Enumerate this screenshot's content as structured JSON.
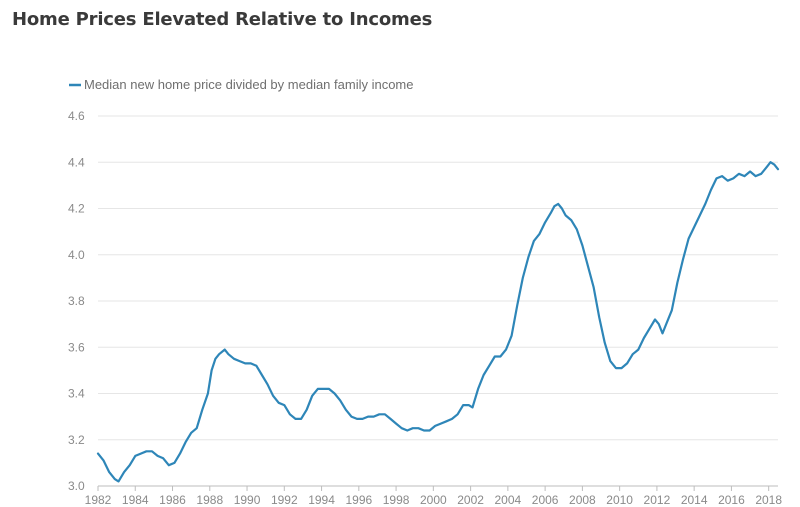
{
  "chart_data": {
    "type": "line",
    "title": "Home Prices Elevated Relative to Incomes",
    "xlabel": "",
    "ylabel": "",
    "xlim": [
      1982,
      2018.5
    ],
    "ylim": [
      3.0,
      4.6
    ],
    "grid": true,
    "legend_position": "top-left",
    "x_ticks": [
      1982,
      1984,
      1986,
      1988,
      1990,
      1992,
      1994,
      1996,
      1998,
      2000,
      2002,
      2004,
      2006,
      2008,
      2010,
      2012,
      2014,
      2016,
      2018
    ],
    "y_ticks": [
      "3.0",
      "3.2",
      "3.4",
      "3.6",
      "3.8",
      "4.0",
      "4.2",
      "4.4",
      "4.6"
    ],
    "colors": {
      "series": "#2e86b8",
      "grid": "#e6e6e6",
      "axis": "#bdbdbd"
    },
    "series": [
      {
        "name": "Median new home price divided by median family income",
        "points": [
          [
            1982.0,
            3.14
          ],
          [
            1982.3,
            3.11
          ],
          [
            1982.6,
            3.06
          ],
          [
            1982.9,
            3.03
          ],
          [
            1983.1,
            3.02
          ],
          [
            1983.4,
            3.06
          ],
          [
            1983.7,
            3.09
          ],
          [
            1984.0,
            3.13
          ],
          [
            1984.3,
            3.14
          ],
          [
            1984.6,
            3.15
          ],
          [
            1984.9,
            3.15
          ],
          [
            1985.2,
            3.13
          ],
          [
            1985.5,
            3.12
          ],
          [
            1985.8,
            3.09
          ],
          [
            1986.1,
            3.1
          ],
          [
            1986.4,
            3.14
          ],
          [
            1986.7,
            3.19
          ],
          [
            1987.0,
            3.23
          ],
          [
            1987.3,
            3.25
          ],
          [
            1987.6,
            3.33
          ],
          [
            1987.9,
            3.4
          ],
          [
            1988.1,
            3.5
          ],
          [
            1988.3,
            3.55
          ],
          [
            1988.5,
            3.57
          ],
          [
            1988.8,
            3.59
          ],
          [
            1989.0,
            3.57
          ],
          [
            1989.3,
            3.55
          ],
          [
            1989.6,
            3.54
          ],
          [
            1989.9,
            3.53
          ],
          [
            1990.2,
            3.53
          ],
          [
            1990.5,
            3.52
          ],
          [
            1990.8,
            3.48
          ],
          [
            1991.1,
            3.44
          ],
          [
            1991.4,
            3.39
          ],
          [
            1991.7,
            3.36
          ],
          [
            1992.0,
            3.35
          ],
          [
            1992.3,
            3.31
          ],
          [
            1992.6,
            3.29
          ],
          [
            1992.9,
            3.29
          ],
          [
            1993.2,
            3.33
          ],
          [
            1993.5,
            3.39
          ],
          [
            1993.8,
            3.42
          ],
          [
            1994.1,
            3.42
          ],
          [
            1994.4,
            3.42
          ],
          [
            1994.7,
            3.4
          ],
          [
            1995.0,
            3.37
          ],
          [
            1995.3,
            3.33
          ],
          [
            1995.6,
            3.3
          ],
          [
            1995.9,
            3.29
          ],
          [
            1996.2,
            3.29
          ],
          [
            1996.5,
            3.3
          ],
          [
            1996.8,
            3.3
          ],
          [
            1997.1,
            3.31
          ],
          [
            1997.4,
            3.31
          ],
          [
            1997.7,
            3.29
          ],
          [
            1998.0,
            3.27
          ],
          [
            1998.3,
            3.25
          ],
          [
            1998.6,
            3.24
          ],
          [
            1998.9,
            3.25
          ],
          [
            1999.2,
            3.25
          ],
          [
            1999.5,
            3.24
          ],
          [
            1999.8,
            3.24
          ],
          [
            2000.1,
            3.26
          ],
          [
            2000.4,
            3.27
          ],
          [
            2000.7,
            3.28
          ],
          [
            2001.0,
            3.29
          ],
          [
            2001.3,
            3.31
          ],
          [
            2001.6,
            3.35
          ],
          [
            2001.9,
            3.35
          ],
          [
            2002.1,
            3.34
          ],
          [
            2002.4,
            3.42
          ],
          [
            2002.7,
            3.48
          ],
          [
            2003.0,
            3.52
          ],
          [
            2003.3,
            3.56
          ],
          [
            2003.6,
            3.56
          ],
          [
            2003.9,
            3.59
          ],
          [
            2004.2,
            3.65
          ],
          [
            2004.5,
            3.78
          ],
          [
            2004.8,
            3.9
          ],
          [
            2005.1,
            3.99
          ],
          [
            2005.4,
            4.06
          ],
          [
            2005.7,
            4.09
          ],
          [
            2006.0,
            4.14
          ],
          [
            2006.3,
            4.18
          ],
          [
            2006.5,
            4.21
          ],
          [
            2006.7,
            4.22
          ],
          [
            2006.9,
            4.2
          ],
          [
            2007.1,
            4.17
          ],
          [
            2007.4,
            4.15
          ],
          [
            2007.7,
            4.11
          ],
          [
            2008.0,
            4.04
          ],
          [
            2008.3,
            3.95
          ],
          [
            2008.6,
            3.86
          ],
          [
            2008.9,
            3.73
          ],
          [
            2009.2,
            3.62
          ],
          [
            2009.5,
            3.54
          ],
          [
            2009.8,
            3.51
          ],
          [
            2010.1,
            3.51
          ],
          [
            2010.4,
            3.53
          ],
          [
            2010.7,
            3.57
          ],
          [
            2011.0,
            3.59
          ],
          [
            2011.3,
            3.64
          ],
          [
            2011.6,
            3.68
          ],
          [
            2011.9,
            3.72
          ],
          [
            2012.1,
            3.7
          ],
          [
            2012.3,
            3.66
          ],
          [
            2012.5,
            3.7
          ],
          [
            2012.8,
            3.76
          ],
          [
            2013.1,
            3.88
          ],
          [
            2013.4,
            3.98
          ],
          [
            2013.7,
            4.07
          ],
          [
            2014.0,
            4.12
          ],
          [
            2014.3,
            4.17
          ],
          [
            2014.6,
            4.22
          ],
          [
            2014.9,
            4.28
          ],
          [
            2015.2,
            4.33
          ],
          [
            2015.5,
            4.34
          ],
          [
            2015.8,
            4.32
          ],
          [
            2016.1,
            4.33
          ],
          [
            2016.4,
            4.35
          ],
          [
            2016.7,
            4.34
          ],
          [
            2017.0,
            4.36
          ],
          [
            2017.3,
            4.34
          ],
          [
            2017.6,
            4.35
          ],
          [
            2017.9,
            4.38
          ],
          [
            2018.1,
            4.4
          ],
          [
            2018.3,
            4.39
          ],
          [
            2018.5,
            4.37
          ]
        ]
      }
    ]
  }
}
